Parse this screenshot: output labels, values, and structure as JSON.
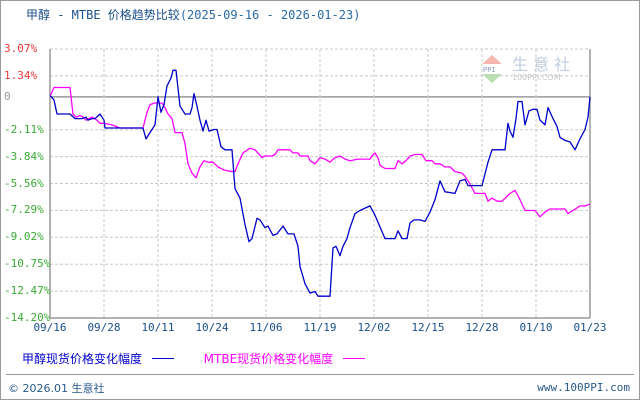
{
  "header": {
    "title": "甲醇 - MTBE 价格趋势比较",
    "date_range": "(2025-09-16 - 2026-01-23)"
  },
  "watermark": {
    "name": "生 意 社",
    "site": "100PPI.COM",
    "badge": "PPI"
  },
  "legend": {
    "items": [
      {
        "label": "甲醇现货价格变化幅度",
        "color": "#0000cc"
      },
      {
        "label": "MTBE现货价格变化幅度",
        "color": "#ff00ff"
      }
    ]
  },
  "footer": {
    "copyright": "© 2026.01 生意社",
    "site": "www.100PPI.com"
  },
  "colors": {
    "positive_label": "#e8383a",
    "negative_label": "#3aaa35",
    "zero_label": "#999999",
    "grid": "#c8c8c8",
    "axis": "#999999",
    "methanol": "#0000cc",
    "mtbe": "#ff00ff"
  },
  "chart_data": {
    "type": "line",
    "title": "甲醇 - MTBE 价格趋势比较(2025-09-16 - 2026-01-23)",
    "xlabel": "",
    "ylabel": "",
    "x_ticks": [
      "09/16",
      "09/28",
      "10/11",
      "10/24",
      "11/06",
      "11/19",
      "12/02",
      "12/15",
      "12/28",
      "01/10",
      "01/23"
    ],
    "y_ticks": [
      "3.07%",
      "1.34%",
      "0",
      "-2.11%",
      "-3.84%",
      "-5.56%",
      "-7.29%",
      "-9.02%",
      "-10.75%",
      "-12.47%",
      "-14.20%"
    ],
    "ylim": [
      -14.2,
      3.07
    ],
    "grid": true,
    "legend_position": "bottom",
    "x_unit_note": "x values are positions on a 0-540 scale spanning 09/16 to 01/23",
    "series": [
      {
        "name": "甲醇现货价格变化幅度",
        "color": "#0000cc",
        "points": [
          [
            0,
            0.1
          ],
          [
            4,
            -0.2
          ],
          [
            7,
            -1.1
          ],
          [
            15,
            -1.1
          ],
          [
            20,
            -1.1
          ],
          [
            25,
            -1.4
          ],
          [
            32,
            -1.4
          ],
          [
            36,
            -1.3
          ],
          [
            38,
            -1.5
          ],
          [
            42,
            -1.4
          ],
          [
            45,
            -1.4
          ],
          [
            50,
            -1.1
          ],
          [
            54,
            -1.5
          ],
          [
            55,
            -2.0
          ],
          [
            60,
            -2.0
          ],
          [
            93,
            -2.0
          ],
          [
            96,
            -2.7
          ],
          [
            100,
            -2.3
          ],
          [
            105,
            -1.8
          ],
          [
            108,
            0.0
          ],
          [
            111,
            -1.0
          ],
          [
            114,
            -0.5
          ],
          [
            117,
            0.7
          ],
          [
            121,
            1.2
          ],
          [
            123,
            1.7
          ],
          [
            126,
            1.7
          ],
          [
            130,
            -0.6
          ],
          [
            135,
            -1.1
          ],
          [
            140,
            -1.1
          ],
          [
            142,
            -0.7
          ],
          [
            144,
            0.2
          ],
          [
            147,
            -0.6
          ],
          [
            150,
            -1.5
          ],
          [
            153,
            -2.2
          ],
          [
            156,
            -1.5
          ],
          [
            159,
            -2.2
          ],
          [
            164,
            -2.1
          ],
          [
            167,
            -2.1
          ],
          [
            171,
            -3.2
          ],
          [
            175,
            -3.4
          ],
          [
            182,
            -3.4
          ],
          [
            185,
            -5.9
          ],
          [
            190,
            -6.5
          ],
          [
            195,
            -8.2
          ],
          [
            199,
            -9.3
          ],
          [
            202,
            -9.1
          ],
          [
            207,
            -7.8
          ],
          [
            210,
            -7.9
          ],
          [
            215,
            -8.4
          ],
          [
            218,
            -8.3
          ],
          [
            223,
            -8.9
          ],
          [
            227,
            -8.8
          ],
          [
            233,
            -8.3
          ],
          [
            238,
            -8.8
          ],
          [
            244,
            -8.8
          ],
          [
            248,
            -9.6
          ],
          [
            250,
            -10.9
          ],
          [
            255,
            -12.0
          ],
          [
            260,
            -12.6
          ],
          [
            265,
            -12.5
          ],
          [
            268,
            -12.8
          ],
          [
            275,
            -12.8
          ],
          [
            280,
            -12.8
          ],
          [
            283,
            -9.7
          ],
          [
            286,
            -9.6
          ],
          [
            290,
            -10.2
          ],
          [
            293,
            -9.6
          ],
          [
            297,
            -9.1
          ],
          [
            300,
            -8.4
          ],
          [
            305,
            -7.5
          ],
          [
            310,
            -7.3
          ],
          [
            320,
            -7.0
          ],
          [
            325,
            -7.6
          ],
          [
            335,
            -9.1
          ],
          [
            340,
            -9.1
          ],
          [
            345,
            -9.1
          ],
          [
            348,
            -8.6
          ],
          [
            352,
            -9.1
          ],
          [
            357,
            -9.1
          ],
          [
            360,
            -8.1
          ],
          [
            364,
            -7.9
          ],
          [
            370,
            -7.9
          ],
          [
            375,
            -8.0
          ],
          [
            380,
            -7.4
          ],
          [
            385,
            -6.6
          ],
          [
            390,
            -5.4
          ],
          [
            395,
            -6.1
          ],
          [
            405,
            -6.2
          ],
          [
            410,
            -5.4
          ],
          [
            415,
            -5.3
          ],
          [
            418,
            -5.7
          ],
          [
            425,
            -5.7
          ],
          [
            432,
            -5.7
          ],
          [
            438,
            -4.2
          ],
          [
            442,
            -3.4
          ],
          [
            445,
            -3.4
          ],
          [
            455,
            -3.4
          ],
          [
            458,
            -1.7
          ],
          [
            460,
            -2.2
          ],
          [
            463,
            -2.6
          ],
          [
            466,
            -1.4
          ],
          [
            468,
            -0.3
          ],
          [
            470,
            -0.3
          ],
          [
            472,
            -0.3
          ],
          [
            475,
            -1.8
          ],
          [
            479,
            -0.9
          ],
          [
            483,
            -0.8
          ],
          [
            487,
            -0.8
          ],
          [
            490,
            -1.5
          ],
          [
            495,
            -1.8
          ],
          [
            498,
            -0.7
          ],
          [
            503,
            -1.4
          ],
          [
            507,
            -1.9
          ],
          [
            510,
            -2.6
          ],
          [
            515,
            -2.8
          ],
          [
            520,
            -2.9
          ],
          [
            525,
            -3.4
          ],
          [
            530,
            -2.7
          ],
          [
            535,
            -2.1
          ],
          [
            538,
            -1.3
          ],
          [
            540,
            0.0
          ]
        ]
      },
      {
        "name": "MTBE现货价格变化幅度",
        "color": "#ff00ff",
        "points": [
          [
            0,
            0.0
          ],
          [
            4,
            0.6
          ],
          [
            17,
            0.6
          ],
          [
            20,
            0.6
          ],
          [
            23,
            -1.1
          ],
          [
            26,
            -1.3
          ],
          [
            30,
            -1.2
          ],
          [
            33,
            -1.3
          ],
          [
            36,
            -1.5
          ],
          [
            42,
            -1.3
          ],
          [
            47,
            -1.5
          ],
          [
            50,
            -1.7
          ],
          [
            54,
            -1.7
          ],
          [
            62,
            -1.8
          ],
          [
            70,
            -2.0
          ],
          [
            93,
            -2.0
          ],
          [
            97,
            -1.0
          ],
          [
            100,
            -0.5
          ],
          [
            105,
            -0.4
          ],
          [
            112,
            -0.4
          ],
          [
            115,
            -0.7
          ],
          [
            118,
            -1.1
          ],
          [
            122,
            -1.4
          ],
          [
            125,
            -2.3
          ],
          [
            132,
            -2.3
          ],
          [
            135,
            -3.0
          ],
          [
            138,
            -4.3
          ],
          [
            142,
            -4.9
          ],
          [
            146,
            -5.2
          ],
          [
            150,
            -4.5
          ],
          [
            154,
            -4.1
          ],
          [
            158,
            -4.2
          ],
          [
            163,
            -4.2
          ],
          [
            168,
            -4.5
          ],
          [
            174,
            -4.7
          ],
          [
            182,
            -4.8
          ],
          [
            185,
            -4.8
          ],
          [
            188,
            -4.3
          ],
          [
            193,
            -3.6
          ],
          [
            200,
            -3.3
          ],
          [
            205,
            -3.4
          ],
          [
            212,
            -3.9
          ],
          [
            215,
            -3.8
          ],
          [
            222,
            -3.8
          ],
          [
            225,
            -3.7
          ],
          [
            228,
            -3.4
          ],
          [
            237,
            -3.4
          ],
          [
            240,
            -3.4
          ],
          [
            243,
            -3.6
          ],
          [
            248,
            -3.6
          ],
          [
            250,
            -3.8
          ],
          [
            255,
            -3.8
          ],
          [
            258,
            -3.8
          ],
          [
            260,
            -4.1
          ],
          [
            265,
            -4.3
          ],
          [
            270,
            -3.9
          ],
          [
            275,
            -4.0
          ],
          [
            280,
            -4.2
          ],
          [
            285,
            -3.9
          ],
          [
            290,
            -3.8
          ],
          [
            295,
            -4.0
          ],
          [
            300,
            -4.1
          ],
          [
            308,
            -4.0
          ],
          [
            315,
            -4.0
          ],
          [
            320,
            -4.0
          ],
          [
            322,
            -3.8
          ],
          [
            325,
            -3.6
          ],
          [
            328,
            -3.9
          ],
          [
            330,
            -4.4
          ],
          [
            335,
            -4.6
          ],
          [
            345,
            -4.6
          ],
          [
            348,
            -4.1
          ],
          [
            350,
            -4.2
          ],
          [
            352,
            -4.3
          ],
          [
            356,
            -4.1
          ],
          [
            360,
            -3.8
          ],
          [
            365,
            -3.7
          ],
          [
            372,
            -3.7
          ],
          [
            376,
            -4.1
          ],
          [
            382,
            -4.1
          ],
          [
            385,
            -4.3
          ],
          [
            390,
            -4.3
          ],
          [
            395,
            -4.5
          ],
          [
            400,
            -4.5
          ],
          [
            405,
            -4.8
          ],
          [
            412,
            -4.9
          ],
          [
            415,
            -5.1
          ],
          [
            420,
            -5.6
          ],
          [
            425,
            -6.2
          ],
          [
            430,
            -6.2
          ],
          [
            435,
            -6.2
          ],
          [
            438,
            -6.7
          ],
          [
            442,
            -6.5
          ],
          [
            447,
            -6.7
          ],
          [
            452,
            -6.7
          ],
          [
            457,
            -6.4
          ],
          [
            460,
            -6.2
          ],
          [
            465,
            -6.0
          ],
          [
            470,
            -6.6
          ],
          [
            475,
            -7.3
          ],
          [
            482,
            -7.3
          ],
          [
            485,
            -7.3
          ],
          [
            490,
            -7.7
          ],
          [
            495,
            -7.4
          ],
          [
            500,
            -7.2
          ],
          [
            510,
            -7.2
          ],
          [
            515,
            -7.2
          ],
          [
            518,
            -7.5
          ],
          [
            523,
            -7.3
          ],
          [
            530,
            -7.0
          ],
          [
            535,
            -7.0
          ],
          [
            540,
            -6.9
          ]
        ]
      }
    ]
  }
}
